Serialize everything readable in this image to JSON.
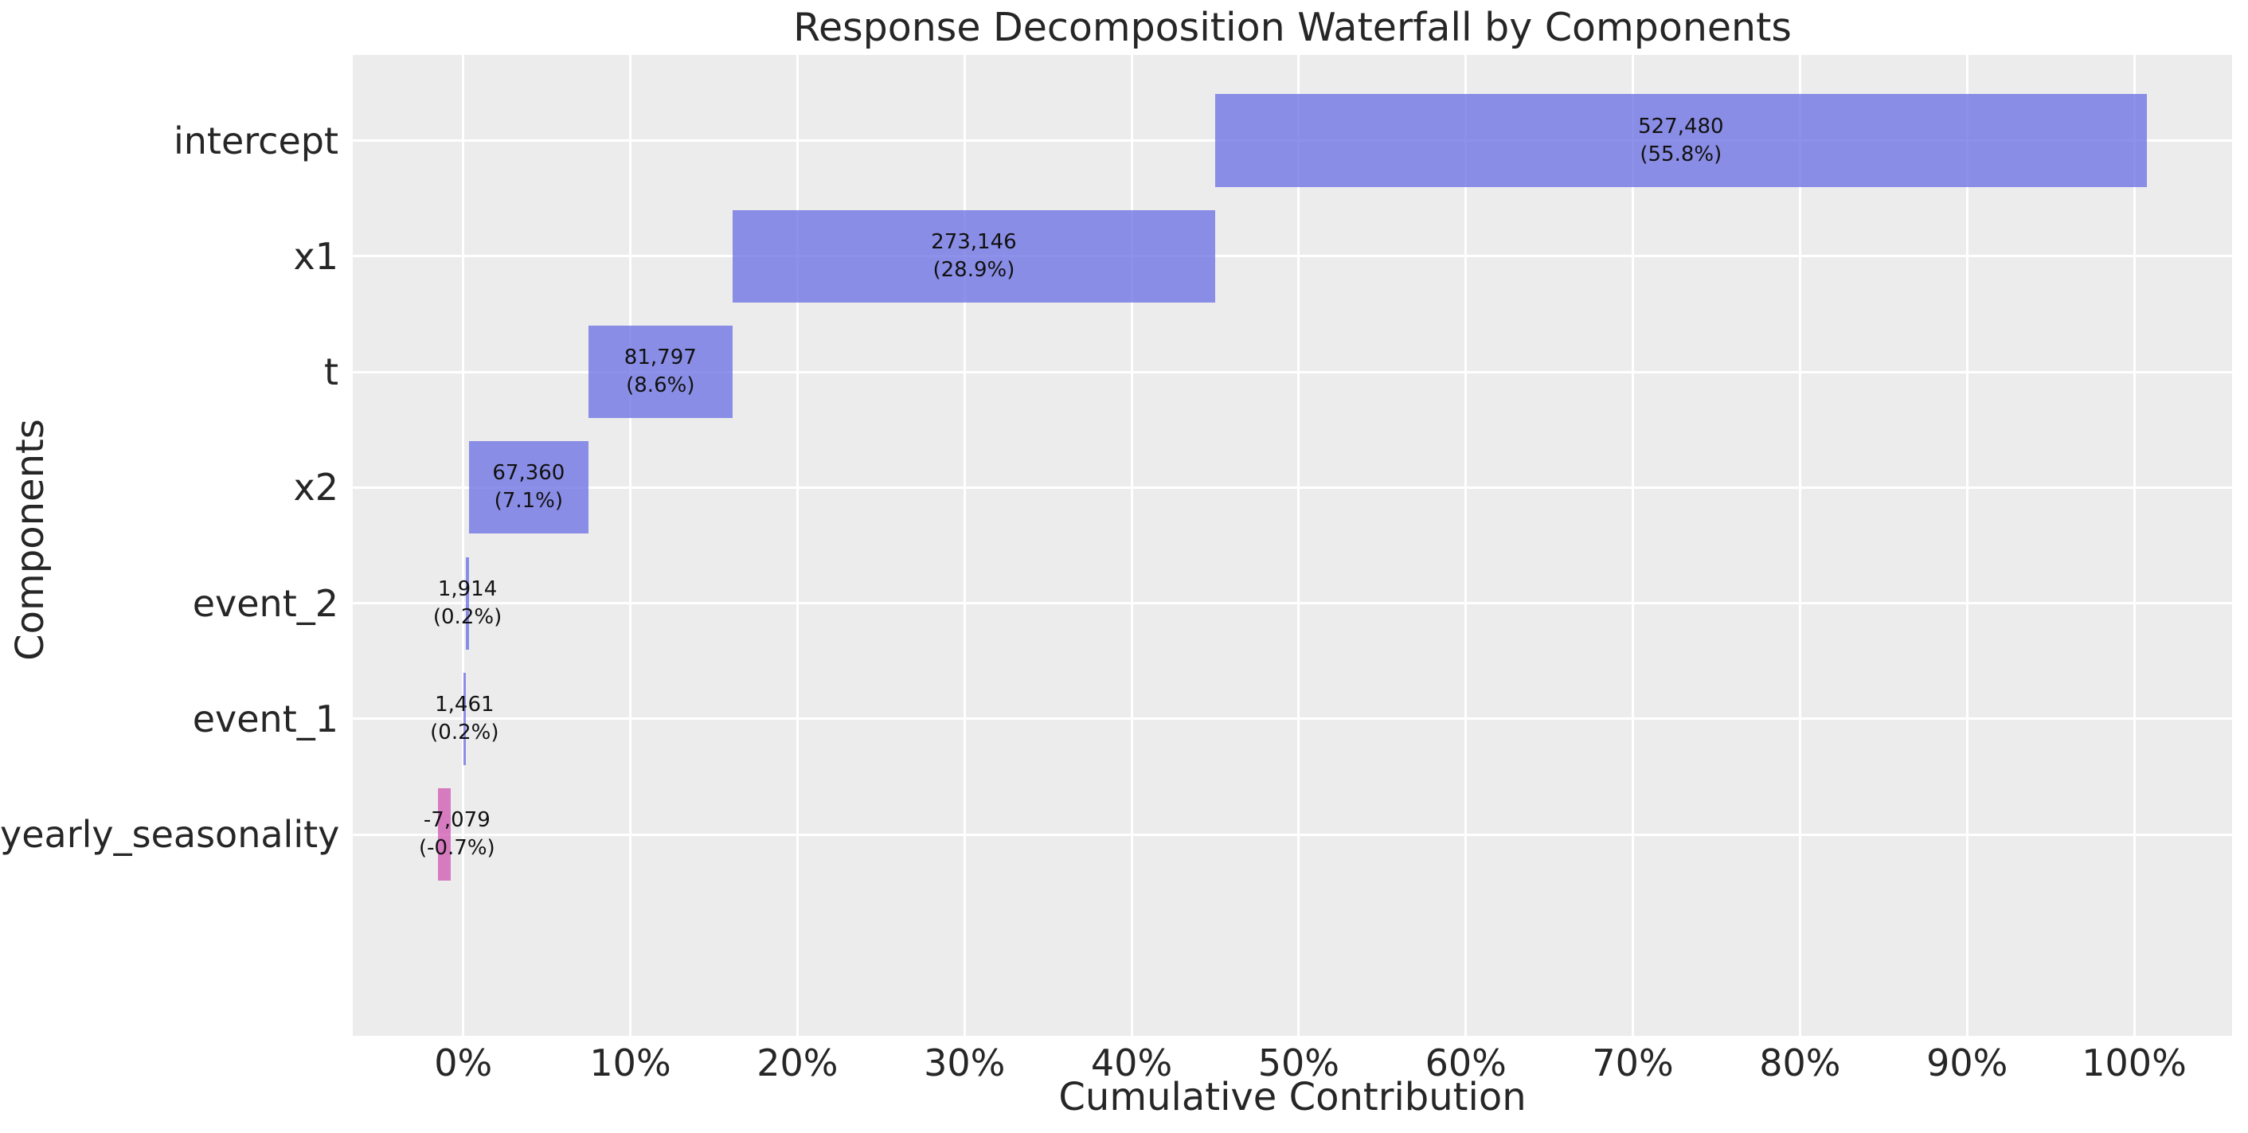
{
  "chart_data": {
    "type": "bar",
    "subtype": "horizontal-waterfall",
    "title": "Response Decomposition Waterfall by Components",
    "xlabel": "Cumulative Contribution",
    "ylabel": "Components",
    "grid": true,
    "legend": false,
    "xlim": [
      -6.61,
      105.86
    ],
    "categories": [
      "intercept",
      "x1",
      "t",
      "x2",
      "event_2",
      "event_1",
      "yearly_seasonality"
    ],
    "x_ticks": [
      {
        "pct": 0,
        "label": "0%"
      },
      {
        "pct": 10,
        "label": "10%"
      },
      {
        "pct": 20,
        "label": "20%"
      },
      {
        "pct": 30,
        "label": "30%"
      },
      {
        "pct": 40,
        "label": "40%"
      },
      {
        "pct": 50,
        "label": "50%"
      },
      {
        "pct": 60,
        "label": "60%"
      },
      {
        "pct": 70,
        "label": "70%"
      },
      {
        "pct": 80,
        "label": "80%"
      },
      {
        "pct": 90,
        "label": "90%"
      },
      {
        "pct": 100,
        "label": "100%"
      }
    ],
    "series": [
      {
        "name": "intercept",
        "value": 527480,
        "value_label": "527,480",
        "pct": 55.8,
        "pct_label": "(55.8%)",
        "start_pct": 44.995,
        "end_pct": 100.752,
        "label_pct": 72.874,
        "sign": "positive"
      },
      {
        "name": "x1",
        "value": 273146,
        "value_label": "273,146",
        "pct": 28.9,
        "pct_label": "(28.9%)",
        "start_pct": 16.123,
        "end_pct": 44.995,
        "label_pct": 30.559,
        "sign": "positive"
      },
      {
        "name": "t",
        "value": 81797,
        "value_label": "81,797",
        "pct": 8.6,
        "pct_label": "(8.6%)",
        "start_pct": 7.476,
        "end_pct": 16.123,
        "label_pct": 11.8,
        "sign": "positive"
      },
      {
        "name": "x2",
        "value": 67360,
        "value_label": "67,360",
        "pct": 7.1,
        "pct_label": "(7.1%)",
        "start_pct": 0.356,
        "end_pct": 7.476,
        "label_pct": 3.916,
        "sign": "positive"
      },
      {
        "name": "event_2",
        "value": 1914,
        "value_label": "1,914",
        "pct": 0.2,
        "pct_label": "(0.2%)",
        "start_pct": 0.154,
        "end_pct": 0.356,
        "label_pct": 0.255,
        "sign": "positive"
      },
      {
        "name": "event_1",
        "value": 1461,
        "value_label": "1,461",
        "pct": 0.2,
        "pct_label": "(0.2%)",
        "start_pct": 0.0,
        "end_pct": 0.154,
        "label_pct": 0.077,
        "sign": "positive"
      },
      {
        "name": "yearly_seasonality",
        "value": -7079,
        "value_label": "-7,079",
        "pct": -0.7,
        "pct_label": "(-0.7%)",
        "start_pct": -1.497,
        "end_pct": -0.748,
        "label_pct": -0.374,
        "sign": "negative"
      }
    ],
    "colors": {
      "figure_bg": "#FFFFFF",
      "plot_bg": "#ECECEC",
      "grid": "#FFFFFF",
      "positive_bar": "rgba(113,118,228,0.8)",
      "negative_bar": "rgba(209,95,181,0.8)",
      "text": "#262626",
      "bar_label_text": "#111111"
    }
  }
}
